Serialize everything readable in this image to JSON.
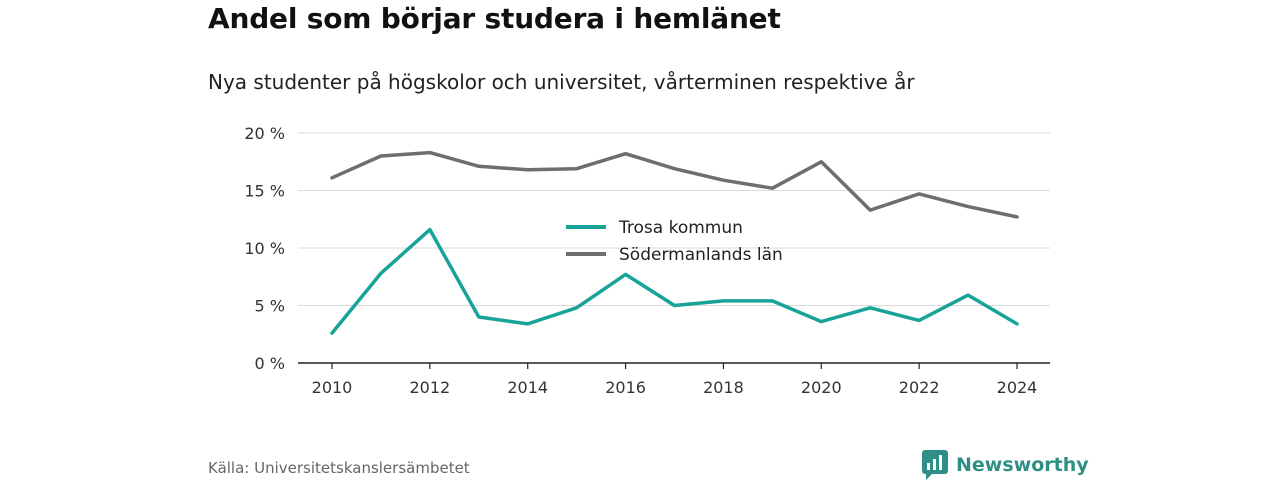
{
  "title": "Andel som börjar studera i hemlänet",
  "subtitle": "Nya studenter på högskolor och universitet, vårterminen respektive år",
  "source": "Källa: Universitetskanslersämbetet",
  "brand": {
    "name": "Newsworthy",
    "icon": "newsworthy-logo-icon",
    "color": "#2f8f86"
  },
  "chart_data": {
    "type": "line",
    "title": "Andel som börjar studera i hemlänet",
    "subtitle": "Nya studenter på högskolor och universitet, vårterminen respektive år",
    "x": [
      2010,
      2011,
      2012,
      2013,
      2014,
      2015,
      2016,
      2017,
      2018,
      2019,
      2020,
      2021,
      2022,
      2023,
      2024
    ],
    "xticks": [
      "2010",
      "2012",
      "2014",
      "2016",
      "2018",
      "2020",
      "2022",
      "2024"
    ],
    "yticks": [
      "0 %",
      "5 %",
      "10 %",
      "15 %",
      "20 %"
    ],
    "ylim": [
      0,
      20
    ],
    "grid": true,
    "legend": "center",
    "series": [
      {
        "name": "Trosa kommun",
        "color": "#17a398",
        "values": [
          2.6,
          7.8,
          11.6,
          4.0,
          3.4,
          4.8,
          7.7,
          5.0,
          5.4,
          5.4,
          3.6,
          4.8,
          3.7,
          5.9,
          3.4
        ]
      },
      {
        "name": "Södermanlands län",
        "color": "#6e6e6e",
        "values": [
          16.1,
          18.0,
          18.3,
          17.1,
          16.8,
          16.9,
          18.2,
          16.9,
          15.9,
          15.2,
          17.5,
          13.3,
          14.7,
          13.6,
          12.7
        ]
      }
    ]
  }
}
